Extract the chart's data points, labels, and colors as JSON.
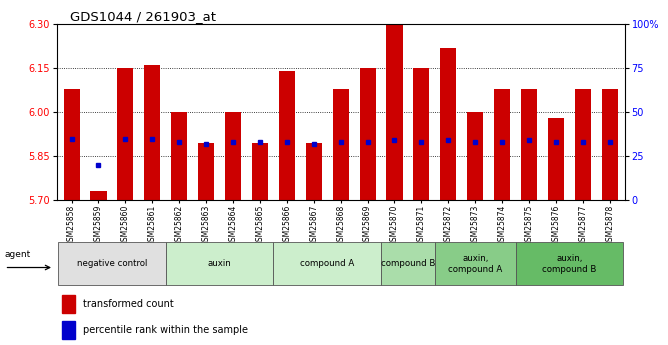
{
  "title": "GDS1044 / 261903_at",
  "samples": [
    "GSM25858",
    "GSM25859",
    "GSM25860",
    "GSM25861",
    "GSM25862",
    "GSM25863",
    "GSM25864",
    "GSM25865",
    "GSM25866",
    "GSM25867",
    "GSM25868",
    "GSM25869",
    "GSM25870",
    "GSM25871",
    "GSM25872",
    "GSM25873",
    "GSM25874",
    "GSM25875",
    "GSM25876",
    "GSM25877",
    "GSM25878"
  ],
  "transformed_count": [
    6.08,
    5.73,
    6.15,
    6.16,
    6.0,
    5.895,
    6.0,
    5.895,
    6.14,
    5.895,
    6.08,
    6.15,
    6.3,
    6.15,
    6.22,
    6.0,
    6.08,
    6.08,
    5.98,
    6.08,
    6.08
  ],
  "percentile_rank": [
    35,
    20,
    35,
    35,
    33,
    32,
    33,
    33,
    33,
    32,
    33,
    33,
    34,
    33,
    34,
    33,
    33,
    34,
    33,
    33,
    33
  ],
  "ylim_left": [
    5.7,
    6.3
  ],
  "ylim_right": [
    0,
    100
  ],
  "yticks_left": [
    5.7,
    5.85,
    6.0,
    6.15,
    6.3
  ],
  "yticks_right": [
    0,
    25,
    50,
    75,
    100
  ],
  "ytick_labels_right": [
    "0",
    "25",
    "50",
    "75",
    "100%"
  ],
  "bar_color": "#cc0000",
  "marker_color": "#0000cc",
  "group_boundaries": [
    [
      0,
      3,
      "negative control",
      "#e0e0e0"
    ],
    [
      4,
      7,
      "auxin",
      "#cceecc"
    ],
    [
      8,
      11,
      "compound A",
      "#cceecc"
    ],
    [
      12,
      13,
      "compound B",
      "#aaddaa"
    ],
    [
      14,
      16,
      "auxin,\ncompound A",
      "#88cc88"
    ],
    [
      17,
      20,
      "auxin,\ncompound B",
      "#66bb66"
    ]
  ],
  "legend_entries": [
    "transformed count",
    "percentile rank within the sample"
  ],
  "legend_colors": [
    "#cc0000",
    "#0000cc"
  ]
}
